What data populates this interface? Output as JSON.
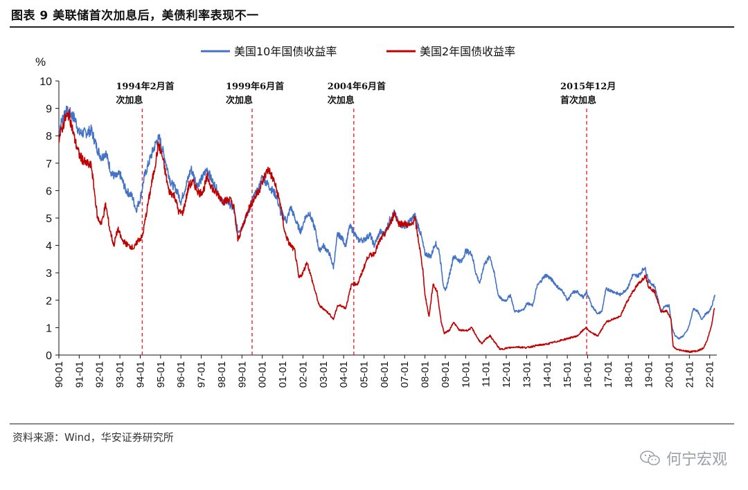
{
  "header": {
    "title": "图表 9 美联储首次加息后，美债利率表现不一"
  },
  "footer": {
    "source": "资料来源：Wind，华安证券研究所",
    "watermark": "何宁宏观"
  },
  "chart_data": {
    "type": "line",
    "title": "",
    "ylabel": "%",
    "xlabel": "",
    "ylim": [
      0,
      10
    ],
    "yticks": [
      0,
      1,
      2,
      3,
      4,
      5,
      6,
      7,
      8,
      9,
      10
    ],
    "xlim": [
      1990.0,
      2022.35
    ],
    "xtick_labels": [
      "90-01",
      "91-01",
      "92-01",
      "93-01",
      "94-01",
      "95-01",
      "96-01",
      "97-01",
      "98-01",
      "99-01",
      "00-01",
      "01-01",
      "02-01",
      "03-01",
      "04-01",
      "05-01",
      "06-01",
      "07-01",
      "08-01",
      "09-01",
      "10-01",
      "11-01",
      "12-01",
      "13-01",
      "14-01",
      "15-01",
      "16-01",
      "17-01",
      "18-01",
      "19-01",
      "20-01",
      "21-01",
      "22-01"
    ],
    "legend_position": "top",
    "grid": false,
    "series": [
      {
        "name": "美国10年国债收益率",
        "color": "#4472C4",
        "points": [
          [
            1990.0,
            8.2
          ],
          [
            1990.3,
            8.9
          ],
          [
            1990.6,
            8.8
          ],
          [
            1990.8,
            8.6
          ],
          [
            1991.0,
            8.1
          ],
          [
            1991.3,
            8.1
          ],
          [
            1991.6,
            8.2
          ],
          [
            1991.9,
            7.5
          ],
          [
            1992.1,
            7.2
          ],
          [
            1992.3,
            7.4
          ],
          [
            1992.6,
            6.6
          ],
          [
            1992.8,
            6.5
          ],
          [
            1993.0,
            6.6
          ],
          [
            1993.3,
            6.0
          ],
          [
            1993.6,
            5.8
          ],
          [
            1993.8,
            5.3
          ],
          [
            1994.0,
            5.7
          ],
          [
            1994.2,
            6.5
          ],
          [
            1994.5,
            7.2
          ],
          [
            1994.8,
            7.8
          ],
          [
            1994.95,
            7.9
          ],
          [
            1995.2,
            7.2
          ],
          [
            1995.5,
            6.3
          ],
          [
            1995.8,
            6.0
          ],
          [
            1996.0,
            5.6
          ],
          [
            1996.3,
            6.3
          ],
          [
            1996.5,
            6.8
          ],
          [
            1996.8,
            6.2
          ],
          [
            1997.0,
            6.4
          ],
          [
            1997.3,
            6.8
          ],
          [
            1997.5,
            6.4
          ],
          [
            1997.8,
            6.0
          ],
          [
            1998.0,
            5.6
          ],
          [
            1998.3,
            5.6
          ],
          [
            1998.6,
            5.3
          ],
          [
            1998.8,
            4.5
          ],
          [
            1999.0,
            4.7
          ],
          [
            1999.3,
            5.2
          ],
          [
            1999.6,
            5.8
          ],
          [
            1999.8,
            6.0
          ],
          [
            2000.0,
            6.5
          ],
          [
            2000.2,
            6.3
          ],
          [
            2000.4,
            6.1
          ],
          [
            2000.7,
            5.8
          ],
          [
            2000.9,
            5.2
          ],
          [
            2001.2,
            4.9
          ],
          [
            2001.4,
            5.4
          ],
          [
            2001.7,
            4.8
          ],
          [
            2001.9,
            4.5
          ],
          [
            2002.1,
            5.0
          ],
          [
            2002.3,
            5.2
          ],
          [
            2002.6,
            4.6
          ],
          [
            2002.8,
            3.8
          ],
          [
            2003.0,
            4.0
          ],
          [
            2003.3,
            3.7
          ],
          [
            2003.5,
            3.2
          ],
          [
            2003.7,
            4.4
          ],
          [
            2003.9,
            4.3
          ],
          [
            2004.1,
            4.0
          ],
          [
            2004.3,
            4.7
          ],
          [
            2004.5,
            4.5
          ],
          [
            2004.7,
            4.2
          ],
          [
            2005.0,
            4.2
          ],
          [
            2005.3,
            4.4
          ],
          [
            2005.5,
            4.0
          ],
          [
            2005.8,
            4.5
          ],
          [
            2006.0,
            4.4
          ],
          [
            2006.3,
            5.0
          ],
          [
            2006.5,
            5.2
          ],
          [
            2006.7,
            4.8
          ],
          [
            2007.0,
            4.7
          ],
          [
            2007.3,
            4.9
          ],
          [
            2007.5,
            5.1
          ],
          [
            2007.8,
            4.4
          ],
          [
            2008.0,
            3.7
          ],
          [
            2008.3,
            3.6
          ],
          [
            2008.5,
            4.1
          ],
          [
            2008.7,
            3.8
          ],
          [
            2008.9,
            2.6
          ],
          [
            2009.0,
            2.3
          ],
          [
            2009.2,
            2.9
          ],
          [
            2009.4,
            3.6
          ],
          [
            2009.6,
            3.5
          ],
          [
            2009.8,
            3.4
          ],
          [
            2010.0,
            3.8
          ],
          [
            2010.3,
            3.7
          ],
          [
            2010.5,
            3.0
          ],
          [
            2010.7,
            2.6
          ],
          [
            2010.9,
            3.3
          ],
          [
            2011.0,
            3.4
          ],
          [
            2011.2,
            3.6
          ],
          [
            2011.4,
            3.0
          ],
          [
            2011.6,
            2.2
          ],
          [
            2011.8,
            2.0
          ],
          [
            2012.0,
            2.0
          ],
          [
            2012.2,
            2.2
          ],
          [
            2012.4,
            1.6
          ],
          [
            2012.6,
            1.6
          ],
          [
            2012.9,
            1.7
          ],
          [
            2013.0,
            1.9
          ],
          [
            2013.3,
            1.8
          ],
          [
            2013.5,
            2.5
          ],
          [
            2013.7,
            2.7
          ],
          [
            2013.9,
            2.9
          ],
          [
            2014.0,
            2.9
          ],
          [
            2014.3,
            2.7
          ],
          [
            2014.5,
            2.5
          ],
          [
            2014.8,
            2.3
          ],
          [
            2015.0,
            2.0
          ],
          [
            2015.3,
            2.3
          ],
          [
            2015.5,
            2.3
          ],
          [
            2015.8,
            2.1
          ],
          [
            2015.95,
            2.3
          ],
          [
            2016.2,
            1.8
          ],
          [
            2016.5,
            1.5
          ],
          [
            2016.7,
            1.6
          ],
          [
            2016.9,
            2.4
          ],
          [
            2017.0,
            2.4
          ],
          [
            2017.3,
            2.3
          ],
          [
            2017.6,
            2.2
          ],
          [
            2017.9,
            2.4
          ],
          [
            2018.0,
            2.5
          ],
          [
            2018.2,
            2.9
          ],
          [
            2018.5,
            2.9
          ],
          [
            2018.8,
            3.2
          ],
          [
            2018.9,
            3.0
          ],
          [
            2019.0,
            2.7
          ],
          [
            2019.3,
            2.5
          ],
          [
            2019.6,
            1.6
          ],
          [
            2019.8,
            1.8
          ],
          [
            2020.0,
            1.8
          ],
          [
            2020.15,
            1.0
          ],
          [
            2020.3,
            0.7
          ],
          [
            2020.5,
            0.6
          ],
          [
            2020.7,
            0.7
          ],
          [
            2020.9,
            0.9
          ],
          [
            2021.0,
            1.1
          ],
          [
            2021.2,
            1.7
          ],
          [
            2021.4,
            1.6
          ],
          [
            2021.6,
            1.3
          ],
          [
            2021.8,
            1.5
          ],
          [
            2022.0,
            1.6
          ],
          [
            2022.15,
            1.9
          ],
          [
            2022.25,
            2.2
          ]
        ]
      },
      {
        "name": "美国2年国债收益率",
        "color": "#C00000",
        "points": [
          [
            1990.0,
            7.9
          ],
          [
            1990.3,
            8.6
          ],
          [
            1990.5,
            8.8
          ],
          [
            1990.8,
            7.8
          ],
          [
            1991.0,
            7.3
          ],
          [
            1991.3,
            7.0
          ],
          [
            1991.6,
            6.9
          ],
          [
            1991.9,
            5.0
          ],
          [
            1992.1,
            4.8
          ],
          [
            1992.3,
            5.5
          ],
          [
            1992.5,
            4.6
          ],
          [
            1992.7,
            4.0
          ],
          [
            1992.9,
            4.6
          ],
          [
            1993.1,
            4.2
          ],
          [
            1993.4,
            4.0
          ],
          [
            1993.7,
            3.9
          ],
          [
            1993.9,
            4.2
          ],
          [
            1994.1,
            4.3
          ],
          [
            1994.4,
            5.6
          ],
          [
            1994.7,
            6.8
          ],
          [
            1994.9,
            7.7
          ],
          [
            1995.1,
            7.2
          ],
          [
            1995.4,
            6.0
          ],
          [
            1995.7,
            5.8
          ],
          [
            1995.9,
            5.2
          ],
          [
            1996.1,
            5.2
          ],
          [
            1996.4,
            6.2
          ],
          [
            1996.6,
            6.3
          ],
          [
            1996.9,
            5.9
          ],
          [
            1997.1,
            6.0
          ],
          [
            1997.3,
            6.5
          ],
          [
            1997.6,
            6.0
          ],
          [
            1997.9,
            5.8
          ],
          [
            1998.1,
            5.6
          ],
          [
            1998.4,
            5.7
          ],
          [
            1998.6,
            5.4
          ],
          [
            1998.8,
            4.2
          ],
          [
            1999.0,
            4.6
          ],
          [
            1999.3,
            5.3
          ],
          [
            1999.6,
            5.7
          ],
          [
            1999.9,
            6.1
          ],
          [
            2000.1,
            6.5
          ],
          [
            2000.3,
            6.8
          ],
          [
            2000.6,
            6.3
          ],
          [
            2000.9,
            5.5
          ],
          [
            2001.1,
            4.5
          ],
          [
            2001.3,
            4.1
          ],
          [
            2001.6,
            3.8
          ],
          [
            2001.8,
            2.8
          ],
          [
            2002.0,
            3.0
          ],
          [
            2002.2,
            3.4
          ],
          [
            2002.5,
            2.6
          ],
          [
            2002.8,
            1.8
          ],
          [
            2003.0,
            1.7
          ],
          [
            2003.3,
            1.5
          ],
          [
            2003.5,
            1.3
          ],
          [
            2003.7,
            1.8
          ],
          [
            2003.9,
            1.8
          ],
          [
            2004.1,
            1.7
          ],
          [
            2004.4,
            2.6
          ],
          [
            2004.7,
            2.6
          ],
          [
            2004.9,
            3.0
          ],
          [
            2005.2,
            3.6
          ],
          [
            2005.5,
            3.7
          ],
          [
            2005.8,
            4.2
          ],
          [
            2006.0,
            4.4
          ],
          [
            2006.3,
            4.8
          ],
          [
            2006.5,
            5.2
          ],
          [
            2006.7,
            4.8
          ],
          [
            2007.0,
            4.8
          ],
          [
            2007.3,
            4.7
          ],
          [
            2007.5,
            5.0
          ],
          [
            2007.7,
            4.1
          ],
          [
            2007.9,
            3.1
          ],
          [
            2008.0,
            2.2
          ],
          [
            2008.2,
            1.4
          ],
          [
            2008.4,
            2.6
          ],
          [
            2008.6,
            2.3
          ],
          [
            2008.8,
            1.2
          ],
          [
            2008.95,
            0.8
          ],
          [
            2009.2,
            0.9
          ],
          [
            2009.4,
            1.2
          ],
          [
            2009.7,
            0.9
          ],
          [
            2009.9,
            0.9
          ],
          [
            2010.1,
            0.9
          ],
          [
            2010.3,
            1.0
          ],
          [
            2010.6,
            0.6
          ],
          [
            2010.8,
            0.4
          ],
          [
            2011.0,
            0.6
          ],
          [
            2011.2,
            0.7
          ],
          [
            2011.5,
            0.4
          ],
          [
            2011.7,
            0.2
          ],
          [
            2012.0,
            0.25
          ],
          [
            2012.5,
            0.3
          ],
          [
            2013.0,
            0.27
          ],
          [
            2013.5,
            0.35
          ],
          [
            2014.0,
            0.4
          ],
          [
            2014.5,
            0.5
          ],
          [
            2015.0,
            0.6
          ],
          [
            2015.5,
            0.7
          ],
          [
            2015.9,
            1.0
          ],
          [
            2016.2,
            0.8
          ],
          [
            2016.5,
            0.7
          ],
          [
            2016.9,
            1.2
          ],
          [
            2017.2,
            1.3
          ],
          [
            2017.6,
            1.4
          ],
          [
            2017.9,
            1.9
          ],
          [
            2018.2,
            2.3
          ],
          [
            2018.5,
            2.6
          ],
          [
            2018.85,
            2.9
          ],
          [
            2019.0,
            2.5
          ],
          [
            2019.3,
            2.3
          ],
          [
            2019.6,
            1.6
          ],
          [
            2019.9,
            1.6
          ],
          [
            2020.1,
            1.3
          ],
          [
            2020.2,
            0.3
          ],
          [
            2020.4,
            0.2
          ],
          [
            2020.8,
            0.15
          ],
          [
            2021.0,
            0.12
          ],
          [
            2021.4,
            0.15
          ],
          [
            2021.7,
            0.25
          ],
          [
            2021.9,
            0.6
          ],
          [
            2022.1,
            1.1
          ],
          [
            2022.2,
            1.6
          ],
          [
            2022.25,
            1.7
          ]
        ]
      }
    ],
    "annotations": [
      {
        "x": 1994.1,
        "lines": [
          "1994年2月首",
          "次加息"
        ]
      },
      {
        "x": 1999.5,
        "lines": [
          "1999年6月首",
          "次加息"
        ]
      },
      {
        "x": 2004.5,
        "lines": [
          "2004年6月首",
          "次加息"
        ]
      },
      {
        "x": 2015.95,
        "lines": [
          "2015年12月",
          "首次加息"
        ]
      }
    ]
  }
}
